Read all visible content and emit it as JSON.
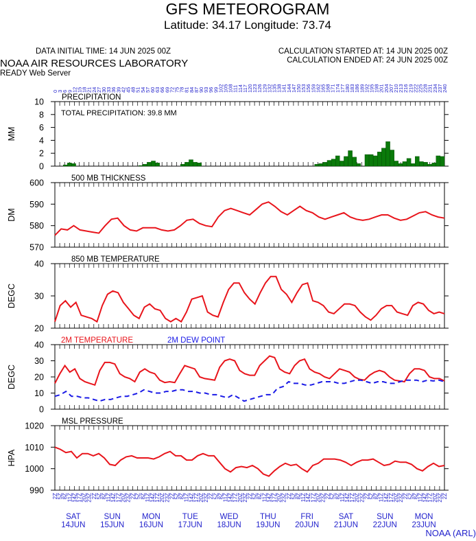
{
  "header": {
    "title": "GFS METEOROGRAM",
    "subtitle": "Latitude: 34.17 Longitude:  73.74",
    "data_initial_time": "DATA INITIAL TIME: 14 JUN 2025 00Z",
    "calc_started": "CALCULATION STARTED AT: 14 JUN 2025 00Z",
    "calc_ended": "CALCULATION ENDED AT: 24 JUN 2025 00Z",
    "lab": "NOAA AIR RESOURCES LABORATORY",
    "server": "READY Web Server",
    "credit": "NOAA (ARL)"
  },
  "colors": {
    "line": "#e8141b",
    "dewpoint": "#1a1ae6",
    "precip": "#0a7a0a",
    "axis": "#000000",
    "ticklabel": "#2222cc"
  },
  "time_axis": {
    "hours": [
      0,
      3,
      6,
      9,
      12,
      15,
      18,
      21,
      24,
      27,
      30,
      33,
      36,
      39,
      42,
      45,
      48,
      51,
      54,
      57,
      60,
      63,
      66,
      69,
      72,
      75,
      78,
      81,
      84,
      87,
      90,
      93,
      96,
      99,
      102,
      105,
      108,
      111,
      114,
      117,
      120,
      123,
      126,
      129,
      132,
      135,
      138,
      141,
      144,
      147,
      150,
      153,
      156,
      159,
      162,
      165,
      168,
      171,
      174,
      177,
      180,
      183,
      186,
      189,
      192,
      195,
      198,
      201,
      204,
      207,
      210,
      213,
      216,
      219,
      222,
      225,
      228,
      231,
      234,
      237,
      240
    ],
    "bottom_ticks": [
      "2Z",
      "5Z",
      "8Z",
      "11Z",
      "14Z",
      "17Z",
      "20Z",
      "23Z",
      "2Z",
      "5Z",
      "8Z",
      "11Z",
      "14Z",
      "17Z",
      "20Z",
      "23Z",
      "2Z",
      "5Z",
      "8Z",
      "11Z",
      "14Z",
      "17Z",
      "20Z",
      "23Z",
      "2Z",
      "5Z",
      "8Z",
      "11Z",
      "14Z",
      "17Z",
      "20Z",
      "23Z",
      "2Z",
      "5Z",
      "8Z",
      "11Z",
      "14Z",
      "17Z",
      "20Z",
      "23Z",
      "2Z",
      "5Z",
      "8Z",
      "11Z",
      "14Z",
      "17Z",
      "20Z",
      "23Z",
      "2Z",
      "5Z",
      "8Z",
      "11Z",
      "14Z",
      "17Z",
      "20Z",
      "23Z",
      "2Z",
      "5Z",
      "8Z",
      "11Z",
      "14Z",
      "17Z",
      "20Z",
      "23Z",
      "2Z",
      "5Z",
      "8Z",
      "11Z",
      "14Z",
      "17Z",
      "20Z",
      "23Z",
      "2Z",
      "5Z",
      "8Z",
      "11Z",
      "14Z",
      "17Z",
      "20Z",
      "23Z",
      "2Z"
    ],
    "days": [
      {
        "dow": "SAT",
        "date": "14JUN"
      },
      {
        "dow": "SUN",
        "date": "15JUN"
      },
      {
        "dow": "MON",
        "date": "16JUN"
      },
      {
        "dow": "TUE",
        "date": "17JUN"
      },
      {
        "dow": "WED",
        "date": "18JUN"
      },
      {
        "dow": "THU",
        "date": "19JUN"
      },
      {
        "dow": "FRI",
        "date": "20JUN"
      },
      {
        "dow": "SAT",
        "date": "21JUN"
      },
      {
        "dow": "SUN",
        "date": "22JUN"
      },
      {
        "dow": "MON",
        "date": "23JUN"
      }
    ]
  },
  "chart_data": [
    {
      "type": "bar",
      "title": "PRECIPITATION",
      "annotation": "TOTAL PRECIPITATION:  39.8 MM",
      "ylabel": "MM",
      "ylim": [
        0,
        10
      ],
      "yticks": [
        0,
        2,
        4,
        6,
        8,
        10
      ],
      "values": [
        0,
        0,
        0.2,
        0.5,
        0.4,
        0,
        0,
        0,
        0,
        0,
        0,
        0,
        0,
        0,
        0,
        0,
        0,
        0,
        0,
        0,
        0.1,
        0.3,
        0.6,
        0.8,
        0.5,
        0,
        0,
        0,
        0,
        0,
        0.3,
        0.6,
        1.0,
        0.6,
        0.5,
        0,
        0,
        0,
        0,
        0,
        0,
        0,
        0,
        0,
        0,
        0,
        0,
        0,
        0,
        0,
        0,
        0,
        0,
        0,
        0,
        0,
        0,
        0,
        0,
        0,
        0,
        0,
        0.3,
        0.4,
        0.6,
        0.9,
        1.1,
        1.6,
        0.8,
        1.5,
        2.4,
        1.4,
        0.4,
        0,
        1.8,
        1.8,
        1.6,
        2.2,
        2.8,
        3.8,
        2.5,
        0.8,
        0.4,
        0.7,
        1.2,
        0.4,
        1.5,
        0.7,
        0.6,
        0.3,
        0.5,
        1.6,
        1.5
      ]
    },
    {
      "type": "line",
      "title": "500 MB  THICKNESS",
      "ylabel": "DM",
      "ylim": [
        570,
        600
      ],
      "yticks": [
        570,
        580,
        590,
        600
      ],
      "values": [
        575.5,
        578.5,
        578,
        580,
        578,
        577.5,
        577,
        576.5,
        580,
        583,
        583.5,
        580,
        578,
        577.5,
        579,
        579,
        579,
        578,
        577.5,
        578,
        580,
        582.5,
        583,
        581,
        580,
        579.5,
        584,
        587,
        588,
        587,
        586,
        585,
        587.5,
        590,
        591,
        589,
        586.5,
        585,
        587,
        589,
        587,
        586,
        584,
        583,
        584,
        585,
        586,
        584,
        583,
        582.5,
        583,
        584,
        585,
        585,
        583.5,
        582.5,
        583,
        584.5,
        586,
        586.5,
        585,
        584,
        583.5
      ]
    },
    {
      "type": "line",
      "title": "850 MB  TEMPERATURE",
      "ylabel": "DEGC",
      "ylim": [
        20,
        40
      ],
      "yticks": [
        20,
        30,
        40
      ],
      "values": [
        22,
        27,
        28.5,
        26.5,
        28,
        24,
        23.5,
        23,
        22,
        27,
        30.5,
        31.5,
        31,
        28,
        26,
        24,
        23,
        26.5,
        27.5,
        26,
        25.5,
        23,
        22,
        23,
        22,
        25,
        29,
        29.5,
        30,
        25,
        24,
        23.5,
        28,
        32,
        34,
        34,
        31,
        29,
        27.5,
        31,
        34,
        36,
        36,
        32,
        30.5,
        28,
        31,
        33.5,
        34,
        28.5,
        28,
        27,
        25,
        24.5,
        26,
        27.5,
        27.5,
        27,
        25,
        23.5,
        22.5,
        24,
        26,
        27,
        27,
        25,
        24.5,
        24,
        27,
        28,
        27.5,
        25.5,
        24.5,
        25,
        24.5
      ]
    },
    {
      "type": "line",
      "title": "2M TEMPERATURE",
      "ylabel": "DEGC",
      "ylim": [
        0,
        40
      ],
      "yticks": [
        0,
        10,
        20,
        30,
        40
      ],
      "series": [
        {
          "name": "2M TEMPERATURE",
          "values": [
            16,
            22,
            27,
            23,
            25,
            19,
            17,
            16,
            15,
            24,
            29,
            29,
            28,
            22,
            20,
            19,
            17,
            23,
            25,
            23,
            22,
            18,
            16.5,
            17,
            16.5,
            22,
            27,
            26,
            25,
            20,
            19,
            18.5,
            18,
            26,
            30,
            31,
            30,
            24,
            22,
            21,
            21,
            27,
            30,
            33,
            32,
            25,
            23,
            22,
            27,
            30,
            31,
            25,
            23,
            22,
            20,
            19,
            22,
            25,
            24,
            23,
            20,
            18.5,
            18,
            21,
            23,
            24,
            23,
            20,
            18,
            17.5,
            17,
            22,
            25,
            25,
            24,
            20,
            19,
            19,
            17.5
          ]
        },
        {
          "name": "2M  DEW POINT",
          "values": [
            8,
            9,
            11,
            8,
            8,
            7,
            7,
            6,
            5,
            6,
            6,
            7,
            8,
            8,
            9,
            10,
            12,
            11,
            10,
            10,
            11,
            11,
            12,
            12,
            11,
            11,
            10,
            10,
            9,
            9,
            8,
            7,
            9,
            7,
            5,
            6,
            7,
            8,
            9,
            9,
            13,
            14,
            17,
            16,
            16,
            15,
            15,
            16,
            17,
            17,
            17,
            16,
            16,
            17,
            18,
            18,
            17,
            16,
            17,
            17,
            16,
            16,
            17,
            18,
            18,
            18,
            17,
            18,
            17.5,
            18,
            17
          ]
        }
      ]
    },
    {
      "type": "line",
      "title": "MSL PRESSURE",
      "ylabel": "HPA",
      "ylim": [
        990,
        1020
      ],
      "yticks": [
        990,
        1000,
        1010,
        1020
      ],
      "values": [
        1010,
        1009,
        1007.5,
        1008,
        1005,
        1007,
        1007,
        1006,
        1007,
        1005,
        1002,
        1001.5,
        1004,
        1005.5,
        1006,
        1005,
        1005,
        1005,
        1004.5,
        1005.5,
        1007,
        1008,
        1006,
        1006,
        1004,
        1004,
        1006,
        1007,
        1006,
        1006,
        1003,
        1000,
        998.5,
        1000.5,
        1001,
        1000.5,
        1001.5,
        1000,
        997.5,
        996.5,
        999,
        1001,
        1002.5,
        1001.5,
        1002,
        1000,
        998.5,
        1001.5,
        1002.5,
        1004.5,
        1004.5,
        1004.5,
        1004,
        1003,
        1001.5,
        1003,
        1004,
        1004,
        1004.5,
        1003,
        1001.5,
        1002,
        1003.5,
        1003,
        1003,
        1002,
        1000,
        999,
        1001,
        1002.5,
        1001,
        1001.5
      ]
    }
  ]
}
